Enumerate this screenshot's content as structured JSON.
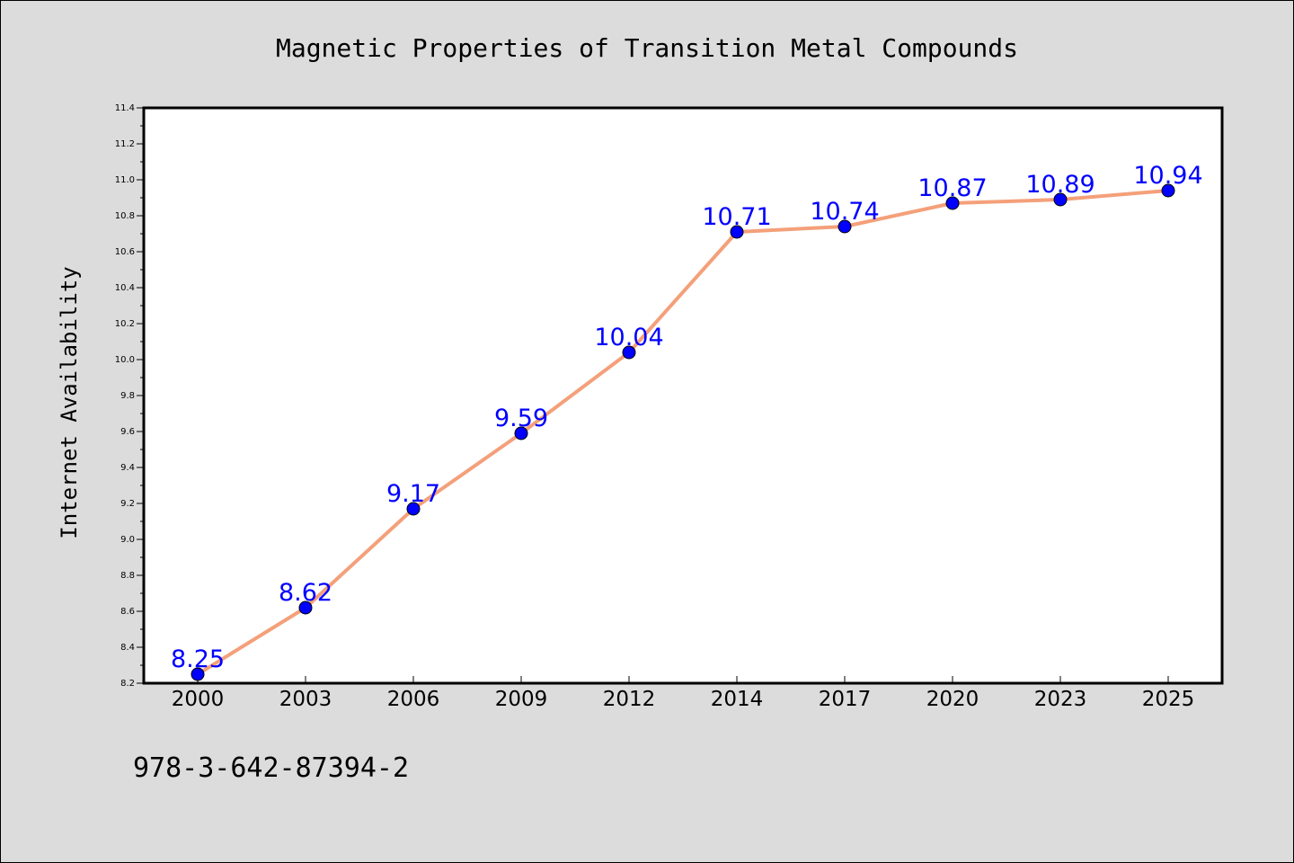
{
  "chart_data": {
    "type": "line",
    "title": "Magnetic Properties of Transition Metal Compounds",
    "xlabel": "",
    "ylabel": "Internet Availability",
    "categories": [
      "2000",
      "2003",
      "2006",
      "2009",
      "2012",
      "2014",
      "2017",
      "2020",
      "2023",
      "2025"
    ],
    "values": [
      8.25,
      8.62,
      9.17,
      9.59,
      10.04,
      10.71,
      10.74,
      10.87,
      10.89,
      10.94
    ],
    "data_labels": [
      "8.25",
      "8.62",
      "9.17",
      "9.59",
      "10.04",
      "10.71",
      "10.74",
      "10.87",
      "10.89",
      "10.94"
    ],
    "ylim": [
      8.2,
      11.4
    ],
    "yticks": [
      "8.2",
      "8.4",
      "8.6",
      "8.8",
      "9.0",
      "9.2",
      "9.4",
      "9.6",
      "9.8",
      "10.0",
      "10.2",
      "10.4",
      "10.6",
      "10.8",
      "11.0",
      "11.2",
      "11.4"
    ],
    "grid": false,
    "legend": "none",
    "colors": {
      "line": "#f4a07a",
      "marker": "#0000ff",
      "data_label": "#0000ff",
      "background": "#dcdcdc",
      "plot_area": "#ffffff"
    }
  },
  "footer": {
    "isbn": "978-3-642-87394-2"
  }
}
